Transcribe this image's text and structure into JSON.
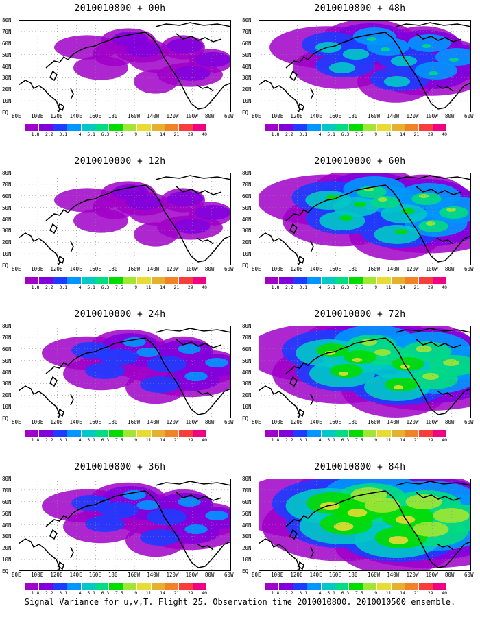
{
  "panels": [
    {
      "title": "2010010800 + 00h",
      "level": 1
    },
    {
      "title": "2010010800 + 48h",
      "level": 3
    },
    {
      "title": "2010010800 + 12h",
      "level": 1
    },
    {
      "title": "2010010800 + 60h",
      "level": 4
    },
    {
      "title": "2010010800 + 24h",
      "level": 2
    },
    {
      "title": "2010010800 + 72h",
      "level": 5
    },
    {
      "title": "2010010800 + 36h",
      "level": 2
    },
    {
      "title": "2010010800 + 84h",
      "level": 6
    }
  ],
  "lat_labels": [
    "80N",
    "70N",
    "60N",
    "50N",
    "40N",
    "30N",
    "20N",
    "10N",
    "EQ"
  ],
  "lon_labels": [
    "80E",
    "100E",
    "120E",
    "140E",
    "160E",
    "180",
    "160W",
    "140W",
    "120W",
    "100W",
    "80W",
    "60W"
  ],
  "colorbar": {
    "values": [
      "1.8",
      "2.2",
      "3.1",
      "4",
      "5.1",
      "6.3",
      "7.5",
      "9",
      "11",
      "14",
      "21",
      "29",
      "40"
    ],
    "colors": [
      "#a000c8",
      "#8200dc",
      "#1e3cff",
      "#0096ff",
      "#00c8c8",
      "#00dc82",
      "#00dc00",
      "#a0e632",
      "#e6dc32",
      "#e6af2d",
      "#f08228",
      "#fa3c3c",
      "#f00082"
    ]
  },
  "caption": "Signal Variance for u,v,T. Flight 25. Observation time 2010010800. 2010010500 ensemble."
}
